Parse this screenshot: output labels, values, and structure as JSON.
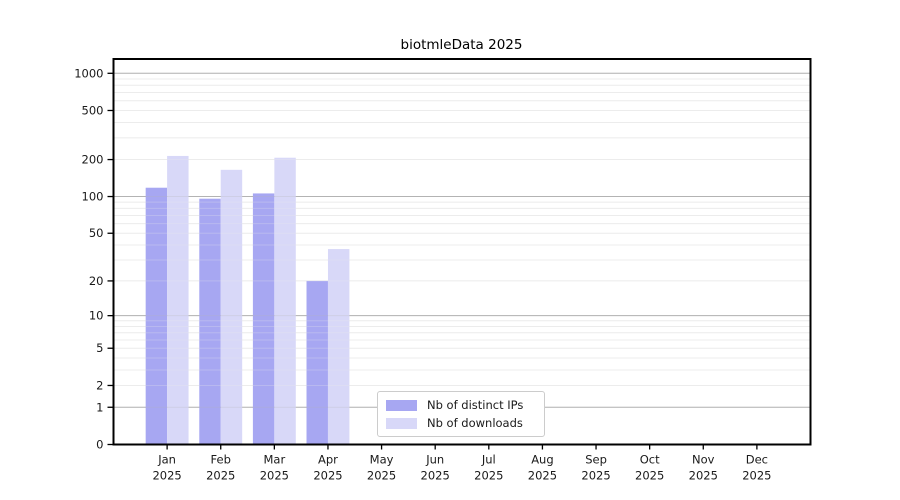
{
  "chart_data": {
    "type": "bar",
    "title": "biotmleData 2025",
    "months": [
      "Jan",
      "Feb",
      "Mar",
      "Apr",
      "May",
      "Jun",
      "Jul",
      "Aug",
      "Sep",
      "Oct",
      "Nov",
      "Dec"
    ],
    "year": "2025",
    "yscale": "log1p",
    "yticks": [
      0,
      1,
      2,
      5,
      10,
      20,
      50,
      100,
      200,
      500,
      1000
    ],
    "ylim": [
      0,
      1300
    ],
    "grid": "horizontal",
    "legend_position": "lower center",
    "series": [
      {
        "name": "Nb of distinct IPs",
        "color": "#a7a7f2",
        "values": [
          118,
          96,
          106,
          20,
          0,
          0,
          0,
          0,
          0,
          0,
          0,
          0
        ]
      },
      {
        "name": "Nb of downloads",
        "color": "#d8d8f8",
        "values": [
          214,
          165,
          207,
          37,
          0,
          0,
          0,
          0,
          0,
          0,
          0,
          0
        ]
      }
    ],
    "theme": {
      "background": "#ffffff",
      "text": "#1a1a1a",
      "grid_minor": "#ececec",
      "grid_major": "#b3b3b3",
      "axis": "#000000",
      "legend_border": "#cccccc"
    }
  }
}
